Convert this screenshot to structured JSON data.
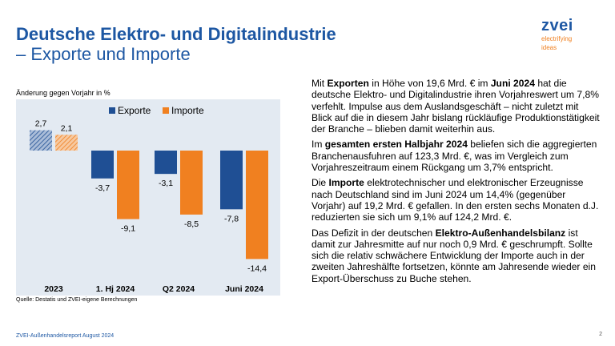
{
  "header": {
    "title_line1": "Deutsche Elektro- und Digitalindustrie",
    "title_line2": "– Exporte und Importe"
  },
  "logo": {
    "word": "zvei",
    "claim_line1": "electrifying",
    "claim_line2": "ideas"
  },
  "colors": {
    "brand_blue": "#1d57a3",
    "exporte": "#1f4f94",
    "importe": "#f08020",
    "chart_bg": "#e3eaf2"
  },
  "chart_data": {
    "type": "bar",
    "subtitle": "Änderung gegen Vorjahr in %",
    "categories": [
      "2023",
      "1. Hj 2024",
      "Q2 2024",
      "Juni 2024"
    ],
    "series": [
      {
        "name": "Exporte",
        "values": [
          2.7,
          -3.7,
          -3.1,
          -7.8
        ],
        "labels": [
          "2,7",
          "-3,7",
          "-3,1",
          "-7,8"
        ]
      },
      {
        "name": "Importe",
        "values": [
          2.1,
          -9.1,
          -8.5,
          -14.4
        ],
        "labels": [
          "2,1",
          "-9,1",
          "-8,5",
          "-14,4"
        ]
      }
    ],
    "hatched_categories": [
      "2023"
    ],
    "legend_position": "top",
    "grid": false,
    "xlabel": "",
    "ylabel": ""
  },
  "source": "Quelle: Destatis und ZVEI-eigene Berechnungen",
  "paragraphs": [
    [
      {
        "t": "Mit "
      },
      {
        "t": "Exporten",
        "b": true
      },
      {
        "t": " in Höhe von 19,6 Mrd. € im "
      },
      {
        "t": "Juni 2024",
        "b": true
      },
      {
        "t": " hat die deutsche Elektro- und Digitalindustrie ihren Vorjahreswert um 7,8% verfehlt. Impulse aus dem Auslandsgeschäft – nicht zuletzt mit Blick auf die in diesem Jahr bislang rückläufige Produktionstätigkeit der Branche – blieben damit weiterhin aus."
      }
    ],
    [
      {
        "t": "Im "
      },
      {
        "t": "gesamten ersten Halbjahr 2024",
        "b": true
      },
      {
        "t": " beliefen sich die aggregierten Branchenausfuhren auf 123,3 Mrd. €, was im Vergleich zum Vorjahreszeitraum einem Rückgang um 3,7% entspricht."
      }
    ],
    [
      {
        "t": "Die "
      },
      {
        "t": "Importe",
        "b": true
      },
      {
        "t": " elektrotechnischer und elektronischer Erzeugnisse nach Deutschland sind im Juni 2024 um 14,4% (gegenüber Vorjahr) auf 19,2 Mrd. € gefallen. In den ersten sechs Monaten d.J. reduzierten sie sich um 9,1% auf 124,2 Mrd. €."
      }
    ],
    [
      {
        "t": "Das Defizit in der deutschen "
      },
      {
        "t": "Elektro-Außenhandelsbilanz",
        "b": true
      },
      {
        "t": " ist damit zur Jahresmitte auf nur noch 0,9 Mrd. € geschrumpft. Sollte sich die relativ schwächere Entwicklung der Importe auch in der zweiten Jahreshälfte fortsetzen, könnte am Jahresende wieder ein Export-Überschuss zu Buche stehen."
      }
    ]
  ],
  "footer": "ZVEI-Außenhandelsreport August 2024",
  "page_number": "2"
}
